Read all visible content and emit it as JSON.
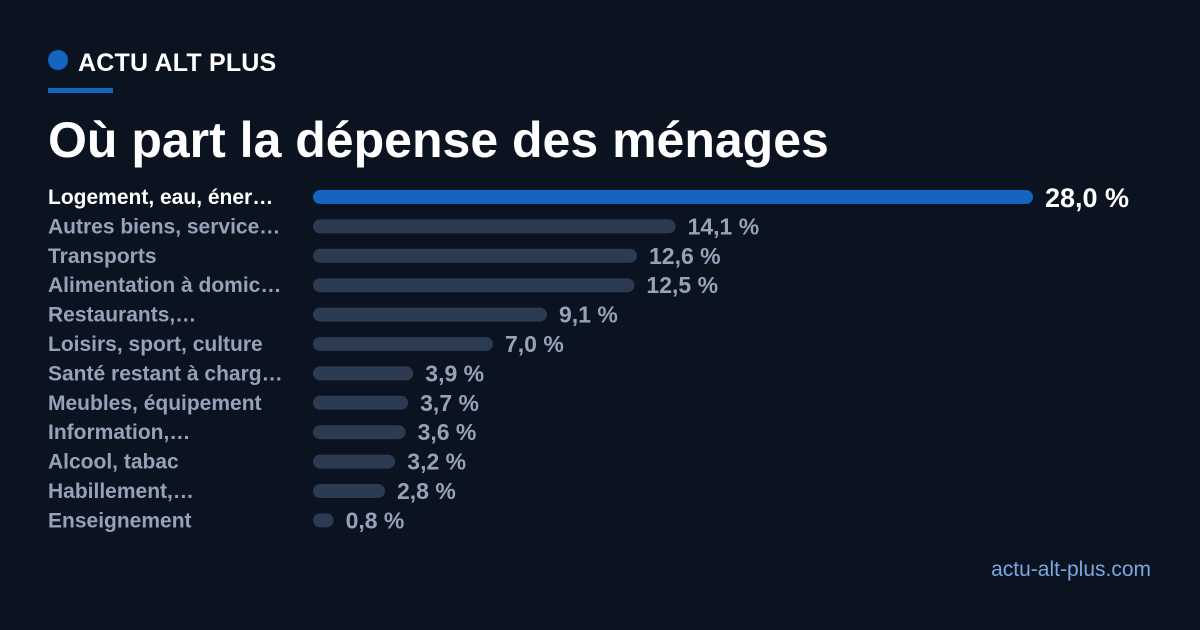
{
  "brand": {
    "name": "ACTU ALT PLUS"
  },
  "title": "Où part la dépense des ménages",
  "footer": {
    "site": "actu-alt-plus.com"
  },
  "colors": {
    "background": "#0b1220",
    "accent": "#1565c0",
    "bar_muted": "#2c3a52",
    "label_muted": "#94a3b8",
    "label_highlight": "#ffffff",
    "footer_link": "#7aa7e0"
  },
  "chart_data": {
    "type": "bar",
    "orientation": "horizontal",
    "categories": [
      "Logement, eau, éner…",
      "Autres biens, service…",
      "Transports",
      "Alimentation à domic…",
      "Restaurants,…",
      "Loisirs, sport, culture",
      "Santé restant à charg…",
      "Meubles, équipement",
      "Information,…",
      "Alcool, tabac",
      "Habillement,…",
      "Enseignement"
    ],
    "values": [
      28.0,
      14.1,
      12.6,
      12.5,
      9.1,
      7.0,
      3.9,
      3.7,
      3.6,
      3.2,
      2.8,
      0.8
    ],
    "value_labels": [
      "28,0 %",
      "14,1 %",
      "12,6 %",
      "12,5 %",
      "9,1 %",
      "7,0 %",
      "3,9 %",
      "3,7 %",
      "3,6 %",
      "3,2 %",
      "2,8 %",
      "0,8 %"
    ],
    "highlight_index": 0,
    "xlim": [
      0,
      28.0
    ],
    "grid": false
  }
}
